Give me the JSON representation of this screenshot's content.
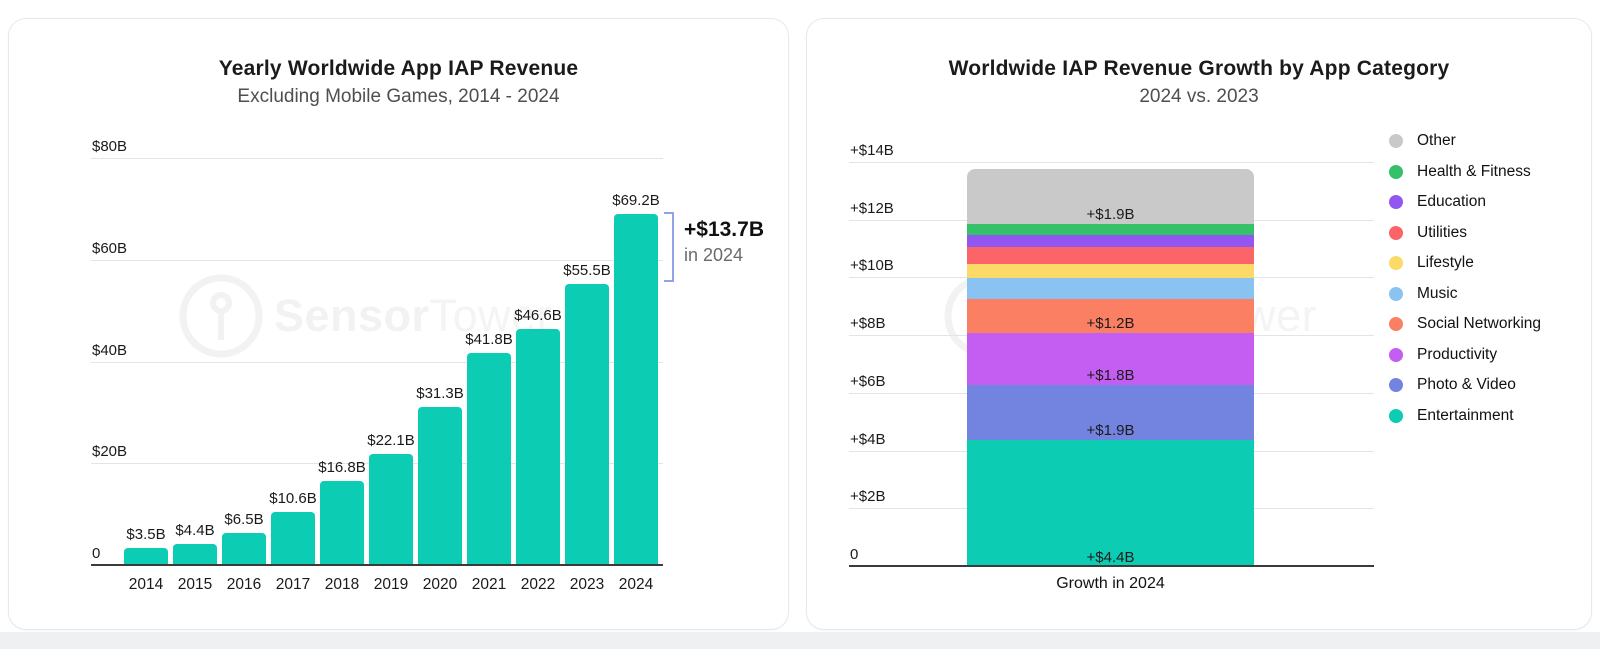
{
  "watermark": {
    "brand_bold": "Sensor",
    "brand_light": "Tower"
  },
  "chart_data": [
    {
      "type": "bar",
      "title": "Yearly Worldwide App IAP Revenue",
      "subtitle": "Excluding Mobile Games, 2014 - 2024",
      "categories": [
        "2014",
        "2015",
        "2016",
        "2017",
        "2018",
        "2019",
        "2020",
        "2021",
        "2022",
        "2023",
        "2024"
      ],
      "values": [
        3.5,
        4.4,
        6.5,
        10.6,
        16.8,
        22.1,
        31.3,
        41.8,
        46.6,
        55.5,
        69.2
      ],
      "bar_labels": [
        "$3.5B",
        "$4.4B",
        "$6.5B",
        "$10.6B",
        "$16.8B",
        "$22.1B",
        "$31.3B",
        "$41.8B",
        "$46.6B",
        "$55.5B",
        "$69.2B"
      ],
      "xlabel": "",
      "ylabel": "",
      "ylim": [
        0,
        80
      ],
      "yticks": [
        {
          "value": 80,
          "label": "$80B"
        },
        {
          "value": 60,
          "label": "$60B"
        },
        {
          "value": 40,
          "label": "$40B"
        },
        {
          "value": 20,
          "label": "$20B"
        },
        {
          "value": 0,
          "label": "0"
        }
      ],
      "grid": true,
      "legend_position": "none",
      "bar_color": "#0cccb4",
      "annotation": {
        "bold_text": "+$13.7B",
        "sub_text": "in 2024",
        "span_billions": 13.7,
        "bracket_color": "#92a2e8"
      }
    },
    {
      "type": "bar",
      "stacked": true,
      "title": "Worldwide IAP Revenue Growth by App Category",
      "subtitle": "2024 vs. 2023",
      "categories": [
        "Growth in 2024"
      ],
      "xlabel": "Growth in 2024",
      "ylabel": "",
      "ylim": [
        0,
        14
      ],
      "yticks": [
        {
          "value": 14,
          "label": "+$14B"
        },
        {
          "value": 12,
          "label": "+$12B"
        },
        {
          "value": 10,
          "label": "+$10B"
        },
        {
          "value": 8,
          "label": "+$8B"
        },
        {
          "value": 6,
          "label": "+$6B"
        },
        {
          "value": 4,
          "label": "+$4B"
        },
        {
          "value": 2,
          "label": "+$2B"
        },
        {
          "value": 0,
          "label": "0"
        }
      ],
      "grid": true,
      "legend_position": "right",
      "series_bottom_to_top": [
        {
          "name": "Entertainment",
          "value": 4.4,
          "label": "+$4.4B",
          "color": "#0cccb4"
        },
        {
          "name": "Photo & Video",
          "value": 1.9,
          "label": "+$1.9B",
          "color": "#7383e0"
        },
        {
          "name": "Productivity",
          "value": 1.8,
          "label": "+$1.8B",
          "color": "#c45df2"
        },
        {
          "name": "Social Networking",
          "value": 1.2,
          "label": "+$1.2B",
          "color": "#fb7f63"
        },
        {
          "name": "Music",
          "value": 0.7,
          "label": "",
          "color": "#8ac3f2"
        },
        {
          "name": "Lifestyle",
          "value": 0.5,
          "label": "",
          "color": "#fcda67"
        },
        {
          "name": "Utilities",
          "value": 0.6,
          "label": "",
          "color": "#fb6468"
        },
        {
          "name": "Education",
          "value": 0.4,
          "label": "",
          "color": "#9257f0"
        },
        {
          "name": "Health & Fitness",
          "value": 0.4,
          "label": "",
          "color": "#35c06a"
        },
        {
          "name": "Other",
          "value": 1.9,
          "label": "+$1.9B",
          "color": "#c9c9c9"
        }
      ],
      "legend_top_to_bottom": [
        "Other",
        "Health & Fitness",
        "Education",
        "Utilities",
        "Lifestyle",
        "Music",
        "Social Networking",
        "Productivity",
        "Photo & Video",
        "Entertainment"
      ]
    }
  ]
}
